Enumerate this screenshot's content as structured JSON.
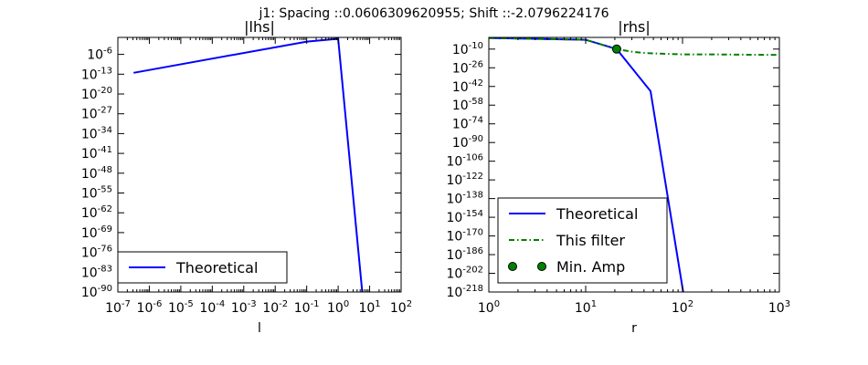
{
  "figure": {
    "suptitle": "j1: Spacing ::0.0606309620955; Shift ::-2.0796224176"
  },
  "chart_data": [
    {
      "type": "line",
      "title": "|lhs|",
      "xlabel": "l",
      "ylabel": "",
      "xscale": "log",
      "yscale": "log",
      "xlim_exp": [
        -7,
        2
      ],
      "ylim_exp": [
        -90,
        0
      ],
      "xtick_exponents": [
        -7,
        -6,
        -5,
        -4,
        -3,
        -2,
        -1,
        0,
        1,
        2
      ],
      "ytick_exponents": [
        -6,
        -13,
        -20,
        -27,
        -34,
        -41,
        -48,
        -55,
        -62,
        -69,
        -76,
        -83,
        -90
      ],
      "grid": false,
      "legend_position": "lower-left",
      "series": [
        {
          "name": "Theoretical",
          "color": "#0000ff",
          "style": "solid",
          "log10_x": [
            -6.5,
            -1.0,
            0.0,
            0.85
          ],
          "log10_y": [
            -12.5,
            -1.5,
            -0.5,
            -100
          ]
        }
      ]
    },
    {
      "type": "line",
      "title": "|rhs|",
      "xlabel": "r",
      "ylabel": "",
      "xscale": "log",
      "yscale": "log",
      "xlim_exp": [
        0,
        3
      ],
      "ylim_exp": [
        -218,
        0
      ],
      "xtick_exponents": [
        0,
        1,
        2,
        3
      ],
      "ytick_exponents": [
        -10,
        -26,
        -42,
        -58,
        -74,
        -90,
        -106,
        -122,
        -138,
        -154,
        -170,
        -186,
        -202,
        -218
      ],
      "grid": false,
      "legend_position": "lower-left",
      "series": [
        {
          "name": "Theoretical",
          "color": "#0000ff",
          "style": "solid",
          "marker": "none",
          "log10_x": [
            0.0,
            1.0,
            1.32,
            1.67,
            2.05
          ],
          "log10_y": [
            -0.5,
            -2.0,
            -10.0,
            -46.0,
            -240.0
          ]
        },
        {
          "name": "This filter",
          "color": "#008000",
          "style": "dashdot",
          "marker": "none",
          "log10_x": [
            0.0,
            1.0,
            1.32,
            1.5,
            1.65,
            1.8,
            2.0,
            2.3,
            2.6,
            3.0
          ],
          "log10_y": [
            -0.5,
            -2.0,
            -10.0,
            -12.5,
            -13.5,
            -14.0,
            -14.5,
            -14.5,
            -14.8,
            -15.0
          ]
        },
        {
          "name": "Min. Amp",
          "color": "#008000",
          "style": "none",
          "marker": "circle",
          "log10_x": [
            1.32
          ],
          "log10_y": [
            -10.0
          ]
        }
      ]
    }
  ]
}
